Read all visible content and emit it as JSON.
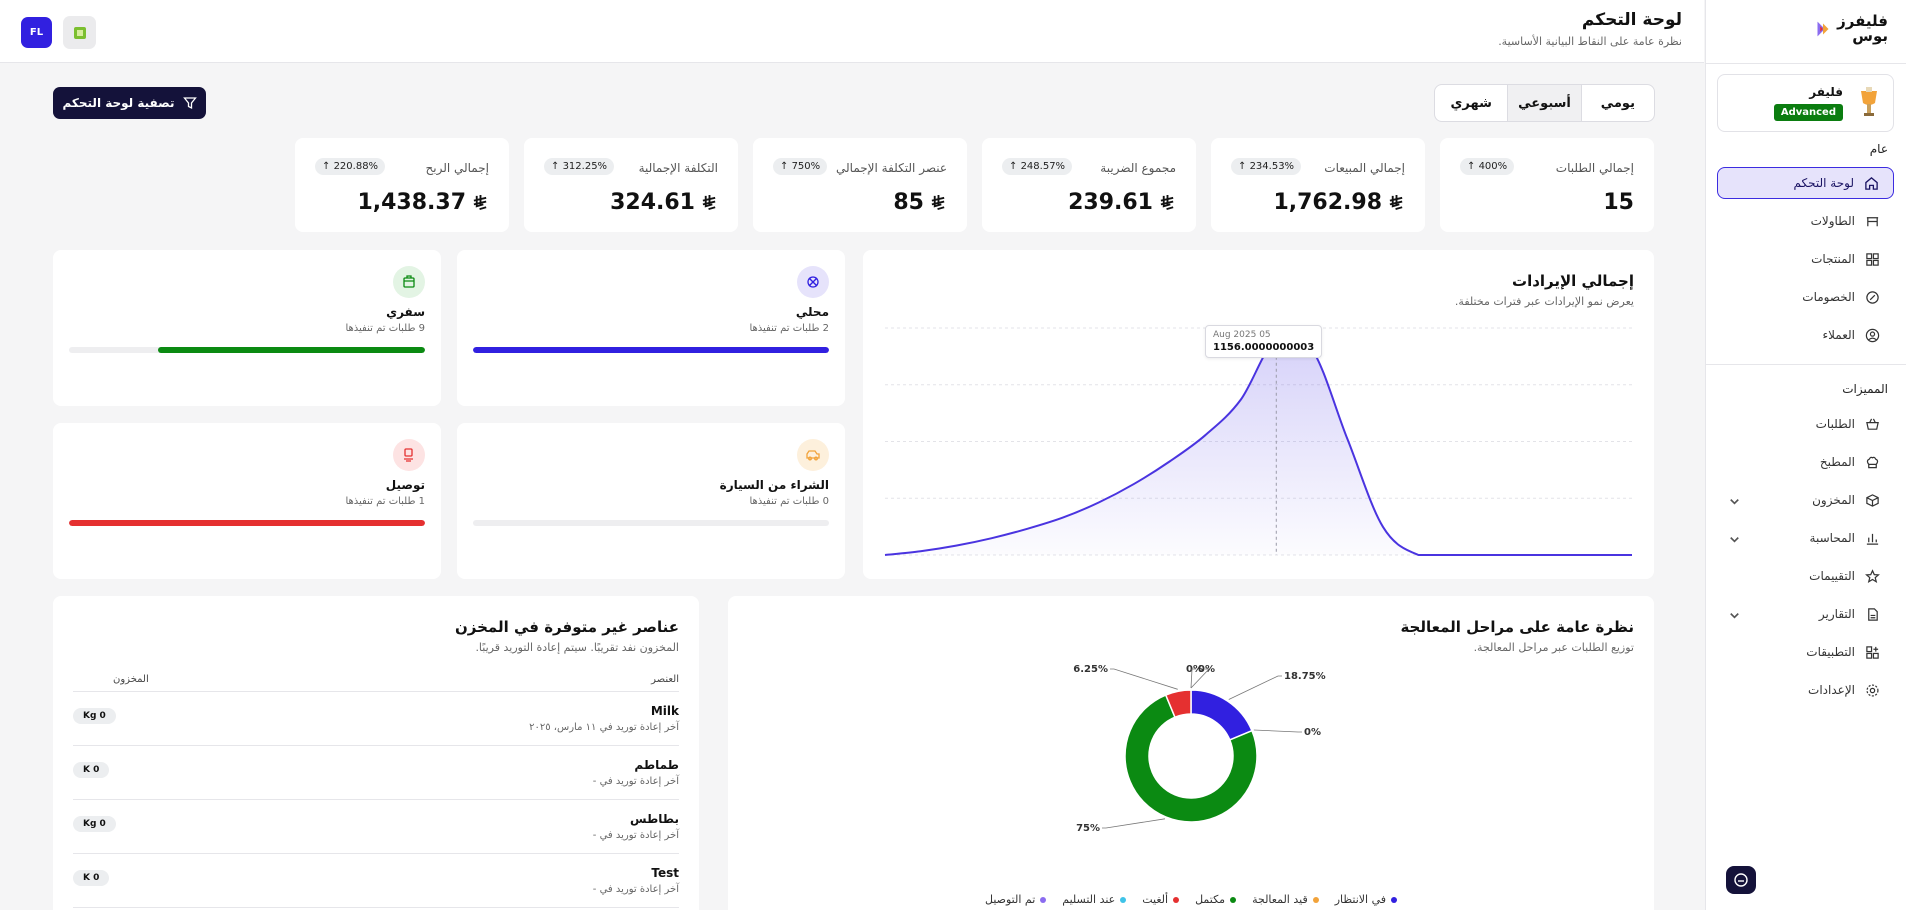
{
  "brand": {
    "name": "فليفرز بوس"
  },
  "plan": {
    "name": "فليفر",
    "tier": "Advanced"
  },
  "nav": {
    "general_label": "عام",
    "general_items": [
      {
        "label": "لوحة التحكم",
        "icon": "home-icon",
        "active": true
      },
      {
        "label": "الطاولات",
        "icon": "table-icon"
      },
      {
        "label": "المنتجات",
        "icon": "grid-icon"
      },
      {
        "label": "الخصومات",
        "icon": "discount-icon"
      },
      {
        "label": "العملاء",
        "icon": "user-icon"
      }
    ],
    "features_label": "المميزات",
    "feature_items": [
      {
        "label": "الطلبات",
        "icon": "basket-icon"
      },
      {
        "label": "المطبخ",
        "icon": "chef-hat-icon"
      },
      {
        "label": "المخزون",
        "icon": "box-icon",
        "expandable": true
      },
      {
        "label": "المحاسبة",
        "icon": "chart-icon",
        "expandable": true
      },
      {
        "label": "التقييمات",
        "icon": "star-icon"
      },
      {
        "label": "التقارير",
        "icon": "report-icon",
        "expandable": true
      },
      {
        "label": "التطبيقات",
        "icon": "apps-icon"
      },
      {
        "label": "الإعدادات",
        "icon": "settings-icon"
      }
    ]
  },
  "header": {
    "title": "لوحة التحكم",
    "subtitle": "نظرة عامة على النقاط البيانية الأساسية.",
    "avatar": "FL"
  },
  "period_tabs": [
    {
      "label": "يومي",
      "active": false
    },
    {
      "label": "أسبوعي",
      "active": true
    },
    {
      "label": "شهري",
      "active": false
    }
  ],
  "filter_button": "تصفية لوحة التحكم",
  "stats": [
    {
      "label": "إجمالي الطلبات",
      "value": "15",
      "change": "400%",
      "currency": false
    },
    {
      "label": "إجمالي المبيعات",
      "value": "1,762.98",
      "change": "234.53%",
      "currency": true
    },
    {
      "label": "مجموع الضريبة",
      "value": "239.61",
      "change": "248.57%",
      "currency": true
    },
    {
      "label": "عنصر التكلفة الإجمالي",
      "value": "85",
      "change": "750%",
      "currency": true
    },
    {
      "label": "التكلفة الإجمالية",
      "value": "324.61",
      "change": "312.25%",
      "currency": true
    },
    {
      "label": "إجمالي الربح",
      "value": "1,438.37",
      "change": "220.88%",
      "currency": true
    }
  ],
  "revenue": {
    "title": "إجمالي الإيرادات",
    "subtitle": "يعرض نمو الإيرادات عبر فترات مختلفة.",
    "tooltip_date": "Aug 2025 05",
    "tooltip_value": "1156.0000000003"
  },
  "order_types": [
    {
      "name": "محلي",
      "count": "2 طلبات تم تنفيذها",
      "fraction": 1.0,
      "color": "#3120e0",
      "bg": "#e6e3fb",
      "icon": "dine-in-icon"
    },
    {
      "name": "سفري",
      "count": "9 طلبات تم تنفيذها",
      "fraction": 0.75,
      "color": "#0b8a12",
      "bg": "#e3f4e4",
      "icon": "takeaway-icon"
    },
    {
      "name": "الشراء من السيارة",
      "count": "0 طلبات تم تنفيذها",
      "fraction": 0.0,
      "color": "#f2a33a",
      "bg": "#fdf0dc",
      "icon": "car-icon"
    },
    {
      "name": "توصيل",
      "count": "1 طلبات تم تنفيذها",
      "fraction": 1.0,
      "color": "#e53030",
      "bg": "#fde3e3",
      "icon": "delivery-icon"
    }
  ],
  "stages": {
    "title": "نظرة عامة على مراحل المعالجة",
    "subtitle": "توزيع الطلبات عبر مراحل المعالجة.",
    "legend": [
      {
        "label": "في الانتظار",
        "color": "#3120e0"
      },
      {
        "label": "قيد المعالجة",
        "color": "#f2a33a"
      },
      {
        "label": "مكتمل",
        "color": "#0b8a12"
      },
      {
        "label": "ألغيت",
        "color": "#e53030"
      },
      {
        "label": "عند التسليم",
        "color": "#3fc3e8"
      },
      {
        "label": "تم التوصيل",
        "color": "#8b6cf0"
      }
    ]
  },
  "chart_data": [
    {
      "type": "area",
      "title": "إجمالي الإيرادات",
      "xlabel": "",
      "ylabel": "",
      "x": [
        "",
        "",
        "",
        "",
        "",
        "",
        "",
        "",
        "",
        "",
        "",
        "Aug 2025 05",
        "",
        "",
        "",
        "",
        "",
        "",
        "",
        "",
        "",
        ""
      ],
      "series": [
        {
          "values": [
            0,
            20,
            50,
            90,
            140,
            200,
            280,
            380,
            500,
            640,
            830,
            1156,
            1100,
            620,
            150,
            0,
            0,
            0,
            0,
            0,
            0,
            0
          ]
        }
      ],
      "grid": true
    },
    {
      "type": "pie",
      "categories": [
        "في الانتظار",
        "قيد المعالجة",
        "مكتمل",
        "ألغيت",
        "عند التسليم",
        "تم التوصيل"
      ],
      "values": [
        18.75,
        0,
        75,
        6.25,
        0,
        0
      ],
      "labels": [
        "18.75%",
        "0%",
        "75%",
        "6.25%",
        "0%",
        "0%"
      ],
      "colors": [
        "#3120e0",
        "#f2a33a",
        "#0b8a12",
        "#e53030",
        "#3fc3e8",
        "#8b6cf0"
      ]
    }
  ],
  "stock": {
    "title": "عناصر غير متوفرة في المخزن",
    "subtitle": "المخزون نفد تقريبًا. سيتم إعادة التوريد قريبًا.",
    "col_item": "العنصر",
    "col_stock": "المخزون",
    "rows": [
      {
        "name": "Milk",
        "sub": "آخر إعادة توريد في ١١ مارس، ٢٠٢٥",
        "stock": "Kg 0"
      },
      {
        "name": "طماطم",
        "sub": "آخر إعادة توريد في -",
        "stock": "K 0"
      },
      {
        "name": "بطاطس",
        "sub": "آخر إعادة توريد في -",
        "stock": "Kg 0"
      },
      {
        "name": "Test",
        "sub": "آخر إعادة توريد في -",
        "stock": "K 0"
      }
    ]
  }
}
